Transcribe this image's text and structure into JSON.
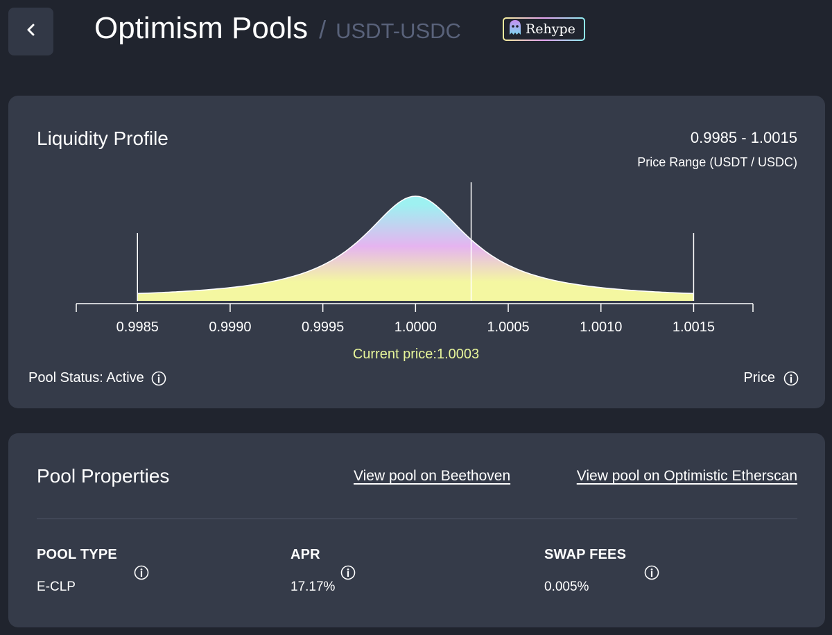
{
  "header": {
    "back_icon": "chevron-left-icon",
    "title": "Optimism Pools",
    "separator": "/",
    "pair": "USDT-USDC",
    "badge_label": "Rehype",
    "badge_icon": "ghost-icon"
  },
  "liquidity": {
    "title": "Liquidity Profile",
    "range_value": "0.9985 - 1.0015",
    "range_label": "Price Range (USDT / USDC)",
    "current_price_label": "Current price:",
    "current_price_value": "1.0003",
    "status_text": "Pool Status: Active",
    "legend_price": "Price"
  },
  "chart_data": {
    "type": "area",
    "x_ticks": [
      "0.9985",
      "0.9990",
      "0.9995",
      "1.0000",
      "1.0005",
      "1.0010",
      "1.0015"
    ],
    "xlim": [
      0.99817,
      1.00182
    ],
    "range": [
      0.9985,
      1.0015
    ],
    "center": 1.0,
    "current_price": 1.0003,
    "relative_peak": 1.0,
    "gradient_colors": [
      "#9ef1f1",
      "#e5b4f0",
      "#f4f7a1"
    ]
  },
  "properties": {
    "title": "Pool Properties",
    "link_beethoven": "View pool on Beethoven",
    "link_etherscan": "View pool on Optimistic Etherscan",
    "items": [
      {
        "label": "POOL TYPE",
        "value": "E-CLP"
      },
      {
        "label": "APR",
        "value": "17.17%"
      },
      {
        "label": "SWAP FEES",
        "value": "0.005%"
      }
    ]
  },
  "colors": {
    "background": "#20242e",
    "card": "#353b49",
    "muted_text": "#59627a",
    "accent_yellow": "#e7f59a"
  }
}
